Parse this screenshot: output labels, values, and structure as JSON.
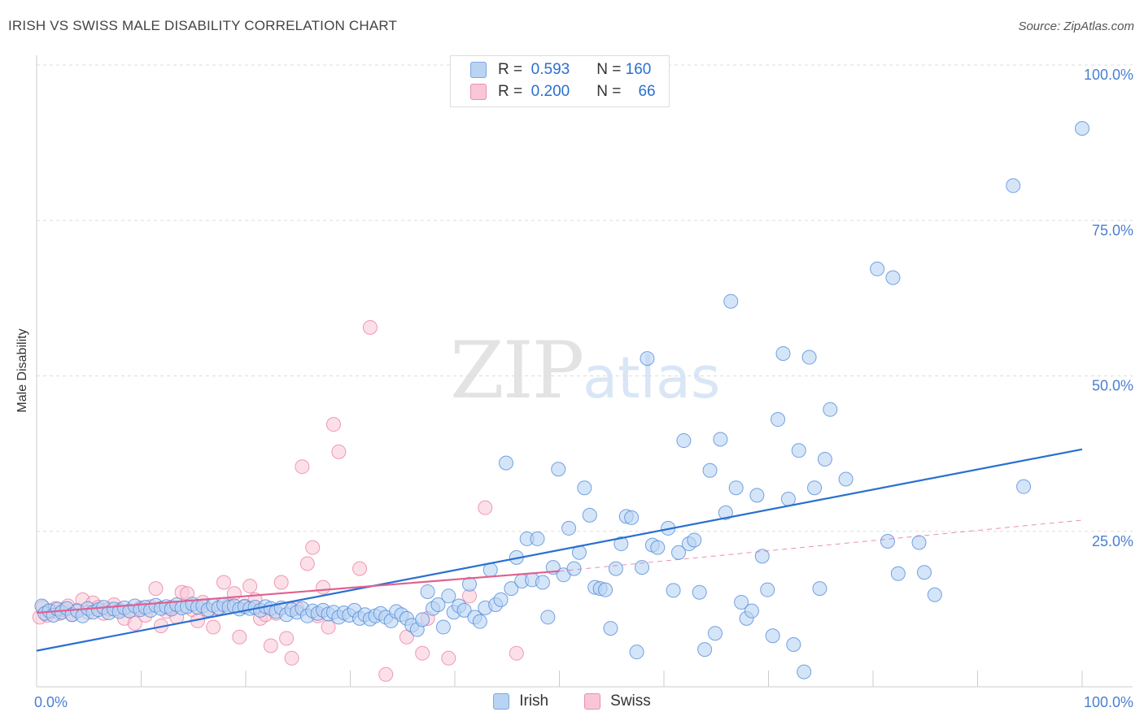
{
  "title": "IRISH VS SWISS MALE DISABILITY CORRELATION CHART",
  "source": "Source: ZipAtlas.com",
  "watermark": {
    "zip": "ZIP",
    "atlas": "atlas"
  },
  "legend": {
    "irish": {
      "r_label": "R =",
      "r_value": "0.593",
      "n_label": "N =",
      "n_value": "160"
    },
    "swiss": {
      "r_label": "R =",
      "r_value": "0.200",
      "n_label": "N =",
      "n_value": "66"
    }
  },
  "bottom_legend": {
    "irish": "Irish",
    "swiss": "Swiss"
  },
  "colors": {
    "irish": "#4a86d8",
    "irish_fill": "#b9d3f3",
    "swiss": "#e8729a",
    "swiss_fill": "#f9c6d6",
    "irish_line": "#2a6fd0",
    "swiss_line": "#e06090"
  },
  "chart_data": {
    "type": "scatter",
    "title": "IRISH VS SWISS MALE DISABILITY CORRELATION CHART",
    "xlabel": "",
    "ylabel": "Male Disability",
    "xlim": [
      0,
      100
    ],
    "ylim": [
      0,
      100
    ],
    "x_tick_labels": [
      "0.0%",
      "100.0%"
    ],
    "y_tick_labels": [
      "25.0%",
      "50.0%",
      "75.0%",
      "100.0%"
    ],
    "y_ticks": [
      25,
      50,
      75,
      100
    ],
    "grid": true,
    "series": [
      {
        "name": "Irish",
        "trend": {
          "x": [
            0,
            100
          ],
          "y": [
            5.8,
            38.2
          ]
        },
        "points": [
          [
            0.5,
            13.0
          ],
          [
            0.8,
            11.8
          ],
          [
            1.2,
            12.2
          ],
          [
            1.6,
            11.5
          ],
          [
            2.0,
            12.5
          ],
          [
            2.4,
            12.0
          ],
          [
            2.9,
            12.6
          ],
          [
            3.4,
            11.6
          ],
          [
            3.9,
            12.2
          ],
          [
            4.4,
            11.4
          ],
          [
            4.9,
            12.6
          ],
          [
            5.4,
            12.0
          ],
          [
            5.9,
            12.4
          ],
          [
            6.4,
            12.8
          ],
          [
            6.9,
            11.9
          ],
          [
            7.4,
            12.5
          ],
          [
            7.9,
            12.1
          ],
          [
            8.4,
            12.7
          ],
          [
            8.9,
            12.2
          ],
          [
            9.4,
            13.0
          ],
          [
            9.9,
            12.4
          ],
          [
            10.4,
            12.8
          ],
          [
            10.9,
            12.3
          ],
          [
            11.4,
            13.1
          ],
          [
            11.9,
            12.6
          ],
          [
            12.4,
            12.9
          ],
          [
            12.9,
            12.5
          ],
          [
            13.4,
            13.2
          ],
          [
            13.9,
            12.7
          ],
          [
            14.4,
            12.9
          ],
          [
            14.9,
            13.3
          ],
          [
            15.4,
            12.8
          ],
          [
            15.9,
            13.0
          ],
          [
            16.4,
            12.4
          ],
          [
            16.9,
            13.1
          ],
          [
            17.4,
            12.7
          ],
          [
            17.9,
            13.2
          ],
          [
            18.4,
            12.8
          ],
          [
            18.9,
            13.0
          ],
          [
            19.4,
            12.5
          ],
          [
            19.9,
            12.9
          ],
          [
            20.4,
            12.6
          ],
          [
            20.9,
            12.8
          ],
          [
            21.4,
            12.3
          ],
          [
            21.9,
            12.9
          ],
          [
            22.4,
            12.6
          ],
          [
            22.9,
            12.1
          ],
          [
            23.4,
            12.7
          ],
          [
            23.9,
            11.6
          ],
          [
            24.4,
            12.4
          ],
          [
            24.9,
            12.0
          ],
          [
            25.4,
            12.6
          ],
          [
            25.9,
            11.4
          ],
          [
            26.4,
            12.2
          ],
          [
            26.9,
            11.8
          ],
          [
            27.4,
            12.3
          ],
          [
            27.9,
            11.7
          ],
          [
            28.4,
            12.0
          ],
          [
            28.9,
            11.2
          ],
          [
            29.4,
            11.9
          ],
          [
            29.9,
            11.5
          ],
          [
            30.4,
            12.3
          ],
          [
            30.9,
            11.0
          ],
          [
            31.4,
            11.6
          ],
          [
            31.9,
            10.9
          ],
          [
            32.4,
            11.4
          ],
          [
            32.9,
            11.8
          ],
          [
            33.4,
            11.2
          ],
          [
            33.9,
            10.6
          ],
          [
            34.4,
            12.1
          ],
          [
            34.9,
            11.6
          ],
          [
            35.4,
            11.0
          ],
          [
            35.9,
            9.9
          ],
          [
            36.4,
            9.2
          ],
          [
            36.9,
            10.8
          ],
          [
            37.4,
            15.3
          ],
          [
            37.9,
            12.6
          ],
          [
            38.4,
            13.2
          ],
          [
            38.9,
            9.6
          ],
          [
            39.4,
            14.6
          ],
          [
            39.9,
            12.0
          ],
          [
            40.4,
            13.0
          ],
          [
            40.9,
            12.3
          ],
          [
            41.4,
            16.5
          ],
          [
            41.9,
            11.2
          ],
          [
            42.4,
            10.5
          ],
          [
            42.9,
            12.7
          ],
          [
            43.4,
            18.8
          ],
          [
            43.9,
            13.2
          ],
          [
            44.4,
            14.0
          ],
          [
            44.9,
            36.0
          ],
          [
            45.4,
            15.8
          ],
          [
            45.9,
            20.8
          ],
          [
            46.4,
            17.0
          ],
          [
            46.9,
            23.8
          ],
          [
            47.4,
            17.2
          ],
          [
            47.9,
            23.8
          ],
          [
            48.4,
            16.8
          ],
          [
            48.9,
            11.2
          ],
          [
            49.4,
            19.2
          ],
          [
            49.9,
            35.0
          ],
          [
            50.4,
            18.0
          ],
          [
            50.9,
            25.5
          ],
          [
            51.4,
            19.0
          ],
          [
            51.9,
            21.6
          ],
          [
            52.4,
            32.0
          ],
          [
            52.9,
            27.6
          ],
          [
            53.4,
            16.0
          ],
          [
            53.9,
            15.8
          ],
          [
            54.4,
            15.6
          ],
          [
            54.9,
            9.4
          ],
          [
            55.4,
            19.0
          ],
          [
            55.9,
            23.0
          ],
          [
            56.4,
            27.4
          ],
          [
            56.9,
            27.2
          ],
          [
            57.4,
            5.6
          ],
          [
            57.9,
            19.2
          ],
          [
            58.4,
            52.8
          ],
          [
            58.9,
            22.8
          ],
          [
            59.4,
            22.4
          ],
          [
            60.4,
            25.5
          ],
          [
            60.9,
            15.5
          ],
          [
            61.4,
            21.6
          ],
          [
            61.9,
            39.6
          ],
          [
            62.4,
            23.0
          ],
          [
            62.9,
            23.6
          ],
          [
            63.4,
            15.2
          ],
          [
            63.9,
            6.0
          ],
          [
            64.4,
            34.8
          ],
          [
            64.9,
            8.6
          ],
          [
            65.4,
            39.8
          ],
          [
            65.9,
            28.0
          ],
          [
            66.4,
            62.0
          ],
          [
            66.9,
            32.0
          ],
          [
            67.4,
            13.6
          ],
          [
            67.9,
            11.0
          ],
          [
            68.4,
            12.2
          ],
          [
            68.9,
            30.8
          ],
          [
            69.4,
            21.0
          ],
          [
            69.9,
            15.6
          ],
          [
            70.4,
            8.2
          ],
          [
            70.9,
            43.0
          ],
          [
            71.4,
            53.6
          ],
          [
            71.9,
            30.2
          ],
          [
            72.4,
            6.8
          ],
          [
            72.9,
            38.0
          ],
          [
            73.4,
            2.4
          ],
          [
            73.9,
            53.0
          ],
          [
            74.4,
            32.0
          ],
          [
            74.9,
            15.8
          ],
          [
            75.4,
            36.6
          ],
          [
            75.9,
            44.6
          ],
          [
            77.4,
            33.4
          ],
          [
            80.4,
            67.2
          ],
          [
            81.4,
            23.4
          ],
          [
            81.9,
            65.8
          ],
          [
            82.4,
            18.2
          ],
          [
            84.4,
            23.2
          ],
          [
            84.9,
            18.4
          ],
          [
            85.9,
            14.8
          ],
          [
            93.4,
            80.6
          ],
          [
            94.4,
            32.2
          ],
          [
            100,
            89.8
          ]
        ]
      },
      {
        "name": "Swiss",
        "trend": {
          "x": [
            0,
            50
          ],
          "y": [
            11.9,
            18.6
          ]
        },
        "trend_dashed": {
          "x": [
            50,
            100
          ],
          "y": [
            18.6,
            26.8
          ]
        },
        "points": [
          [
            0.3,
            11.2
          ],
          [
            0.6,
            12.8
          ],
          [
            1.0,
            11.5
          ],
          [
            1.4,
            12.2
          ],
          [
            1.8,
            12.6
          ],
          [
            2.2,
            11.8
          ],
          [
            2.6,
            12.4
          ],
          [
            3.0,
            13.0
          ],
          [
            3.4,
            11.6
          ],
          [
            3.9,
            12.3
          ],
          [
            4.4,
            14.0
          ],
          [
            4.9,
            12.0
          ],
          [
            5.4,
            13.5
          ],
          [
            5.9,
            12.8
          ],
          [
            6.4,
            11.8
          ],
          [
            6.9,
            12.5
          ],
          [
            7.4,
            13.2
          ],
          [
            7.9,
            12.4
          ],
          [
            8.4,
            11.0
          ],
          [
            8.9,
            12.2
          ],
          [
            9.4,
            10.2
          ],
          [
            9.9,
            12.7
          ],
          [
            10.4,
            11.5
          ],
          [
            10.9,
            12.9
          ],
          [
            11.4,
            15.8
          ],
          [
            11.9,
            9.8
          ],
          [
            12.4,
            12.1
          ],
          [
            12.9,
            12.8
          ],
          [
            13.4,
            11.2
          ],
          [
            13.9,
            15.2
          ],
          [
            14.4,
            15.0
          ],
          [
            14.9,
            12.4
          ],
          [
            15.4,
            10.6
          ],
          [
            15.9,
            13.6
          ],
          [
            16.4,
            12.2
          ],
          [
            16.9,
            9.6
          ],
          [
            17.4,
            12.6
          ],
          [
            17.9,
            16.8
          ],
          [
            18.4,
            13.2
          ],
          [
            18.9,
            15.0
          ],
          [
            19.4,
            8.0
          ],
          [
            19.9,
            13.0
          ],
          [
            20.4,
            16.2
          ],
          [
            20.9,
            14.0
          ],
          [
            21.4,
            11.0
          ],
          [
            21.9,
            11.6
          ],
          [
            22.4,
            6.6
          ],
          [
            22.9,
            11.8
          ],
          [
            23.4,
            16.8
          ],
          [
            23.9,
            7.8
          ],
          [
            24.4,
            4.6
          ],
          [
            24.9,
            12.6
          ],
          [
            25.4,
            35.4
          ],
          [
            25.9,
            19.8
          ],
          [
            26.4,
            22.4
          ],
          [
            26.9,
            11.4
          ],
          [
            27.4,
            16.0
          ],
          [
            27.9,
            9.6
          ],
          [
            28.4,
            42.2
          ],
          [
            28.9,
            37.8
          ],
          [
            30.9,
            19.0
          ],
          [
            31.9,
            57.8
          ],
          [
            33.4,
            2.0
          ],
          [
            35.4,
            8.0
          ],
          [
            36.9,
            5.4
          ],
          [
            37.4,
            11.0
          ],
          [
            39.4,
            4.6
          ],
          [
            41.4,
            14.6
          ],
          [
            42.9,
            28.8
          ],
          [
            45.9,
            5.4
          ]
        ]
      }
    ]
  }
}
